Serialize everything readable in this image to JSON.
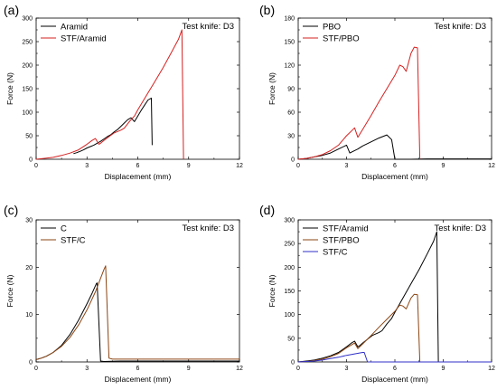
{
  "chart_data": [
    {
      "type": "line",
      "panel_label": "(a)",
      "annotation": "Test knife: D3",
      "xlabel": "Displacement (mm)",
      "ylabel": "Force (N)",
      "xlim": [
        0,
        12
      ],
      "ylim": [
        0,
        300
      ],
      "xticks": [
        0,
        3,
        6,
        9,
        12
      ],
      "yticks": [
        0,
        50,
        100,
        150,
        200,
        250,
        300
      ],
      "legend_position": "top-left",
      "series": [
        {
          "name": "Aramid",
          "color": "#000000",
          "x": [
            2.2,
            2.4,
            2.6,
            2.8,
            3.0,
            3.2,
            3.4,
            3.6,
            3.8,
            4.0,
            4.2,
            4.4,
            4.6,
            4.8,
            5.0,
            5.2,
            5.4,
            5.6,
            5.8,
            6.0,
            6.2,
            6.4,
            6.6,
            6.8,
            6.85
          ],
          "y": [
            12,
            14,
            17,
            20,
            24,
            27,
            30,
            34,
            38,
            43,
            48,
            52,
            58,
            63,
            70,
            77,
            84,
            88,
            80,
            92,
            104,
            115,
            126,
            130,
            30
          ]
        },
        {
          "name": "STF/Aramid",
          "color": "#d62020",
          "x": [
            0,
            0.5,
            1.0,
            1.5,
            2.0,
            2.5,
            3.0,
            3.3,
            3.5,
            3.7,
            3.8,
            4.0,
            4.3,
            4.6,
            5.0,
            5.2,
            5.5,
            5.8,
            6.0,
            6.5,
            7.0,
            7.5,
            8.0,
            8.4,
            8.6,
            8.7
          ],
          "y": [
            0,
            2,
            4,
            8,
            13,
            20,
            32,
            40,
            44,
            32,
            34,
            40,
            48,
            56,
            62,
            66,
            80,
            92,
            105,
            135,
            165,
            195,
            228,
            255,
            275,
            0
          ]
        }
      ]
    },
    {
      "type": "line",
      "panel_label": "(b)",
      "annotation": "Test knife: D3",
      "xlabel": "Displacement (mm)",
      "ylabel": "Force (N)",
      "xlim": [
        0,
        12
      ],
      "ylim": [
        0,
        180
      ],
      "xticks": [
        0,
        3,
        6,
        9,
        12
      ],
      "yticks": [
        0,
        30,
        60,
        90,
        120,
        150,
        180
      ],
      "legend_position": "top-left",
      "series": [
        {
          "name": "PBO",
          "color": "#000000",
          "x": [
            0,
            0.5,
            1.0,
            1.5,
            2.0,
            2.5,
            3.0,
            3.2,
            3.4,
            3.7,
            4.0,
            4.5,
            5.0,
            5.5,
            5.8,
            6.0,
            6.5,
            7.0,
            8.0,
            9.0,
            10.0,
            11.0,
            12.0
          ],
          "y": [
            0,
            1,
            3,
            5,
            8,
            13,
            18,
            8,
            10,
            13,
            17,
            22,
            27,
            31,
            25,
            0,
            0,
            0,
            0.5,
            0.5,
            0.5,
            0.5,
            0.5
          ]
        },
        {
          "name": "STF/PBO",
          "color": "#d62020",
          "x": [
            0,
            0.5,
            1.0,
            1.5,
            2.0,
            2.5,
            3.0,
            3.3,
            3.5,
            3.7,
            4.0,
            4.5,
            5.0,
            5.5,
            6.0,
            6.3,
            6.5,
            6.7,
            7.0,
            7.2,
            7.4,
            7.55
          ],
          "y": [
            0,
            1,
            3,
            6,
            11,
            18,
            30,
            36,
            40,
            28,
            38,
            55,
            73,
            90,
            107,
            120,
            118,
            112,
            135,
            143,
            142,
            0
          ]
        }
      ]
    },
    {
      "type": "line",
      "panel_label": "(c)",
      "annotation": "Test knife: D3",
      "xlabel": "Displacement (mm)",
      "ylabel": "Force (N)",
      "xlim": [
        0,
        12
      ],
      "ylim": [
        0,
        30
      ],
      "xticks": [
        0,
        3,
        6,
        9,
        12
      ],
      "yticks": [
        0,
        10,
        20,
        30
      ],
      "legend_position": "top-left",
      "series": [
        {
          "name": "C",
          "color": "#000000",
          "x": [
            0,
            0.3,
            0.6,
            1.0,
            1.5,
            2.0,
            2.5,
            3.0,
            3.3,
            3.55,
            3.6,
            3.8,
            4.0,
            5.0,
            6.0,
            7.0,
            8.0,
            9.0,
            10.0,
            11.0,
            12.0
          ],
          "y": [
            0.5,
            0.8,
            1.2,
            2.0,
            3.5,
            5.8,
            8.8,
            12.3,
            14.5,
            16.5,
            16.7,
            0.2,
            0.1,
            0.2,
            0.2,
            0.2,
            0.2,
            0.2,
            0.2,
            0.2,
            0.2
          ]
        },
        {
          "name": "STF/C",
          "color": "#8b4513",
          "x": [
            0,
            0.3,
            0.6,
            1.0,
            1.5,
            2.0,
            2.5,
            3.0,
            3.5,
            4.0,
            4.1,
            4.3,
            4.5,
            5.0,
            6.0,
            7.0,
            8.0,
            9.0,
            10.0,
            11.0,
            12.0
          ],
          "y": [
            0.5,
            0.8,
            1.2,
            2.0,
            3.3,
            5.2,
            7.8,
            11.0,
            14.8,
            19.5,
            20.3,
            0.8,
            0.6,
            0.6,
            0.6,
            0.6,
            0.6,
            0.6,
            0.6,
            0.6,
            0.6
          ]
        }
      ]
    },
    {
      "type": "line",
      "panel_label": "(d)",
      "annotation": "Test knife: D3",
      "xlabel": "Displacement (mm)",
      "ylabel": "Force (N)",
      "xlim": [
        0,
        12
      ],
      "ylim": [
        0,
        300
      ],
      "xticks": [
        0,
        3,
        6,
        9,
        12
      ],
      "yticks": [
        0,
        50,
        100,
        150,
        200,
        250,
        300
      ],
      "legend_position": "top-left",
      "series": [
        {
          "name": "STF/Aramid",
          "color": "#000000",
          "x": [
            0,
            0.5,
            1.0,
            1.5,
            2.0,
            2.5,
            3.0,
            3.3,
            3.5,
            3.7,
            3.8,
            4.0,
            4.3,
            4.6,
            5.0,
            5.2,
            5.5,
            5.8,
            6.0,
            6.5,
            7.0,
            7.5,
            8.0,
            8.4,
            8.6,
            8.7,
            9.0,
            10.0,
            11.0,
            12.0
          ],
          "y": [
            0,
            2,
            4,
            8,
            13,
            20,
            32,
            40,
            44,
            32,
            34,
            40,
            48,
            56,
            62,
            66,
            80,
            92,
            105,
            135,
            165,
            195,
            228,
            255,
            275,
            0,
            0,
            0,
            0,
            0
          ]
        },
        {
          "name": "STF/PBO",
          "color": "#8b4513",
          "x": [
            0,
            0.5,
            1.0,
            1.5,
            2.0,
            2.5,
            3.0,
            3.3,
            3.5,
            3.7,
            4.0,
            4.5,
            5.0,
            5.5,
            6.0,
            6.3,
            6.5,
            6.7,
            7.0,
            7.2,
            7.4,
            7.55
          ],
          "y": [
            0,
            1,
            3,
            6,
            11,
            18,
            30,
            36,
            40,
            28,
            38,
            55,
            73,
            90,
            107,
            120,
            118,
            112,
            135,
            143,
            142,
            0
          ]
        },
        {
          "name": "STF/C",
          "color": "#2f2fc8",
          "x": [
            0,
            0.5,
            1.0,
            1.5,
            2.0,
            2.5,
            3.0,
            3.5,
            4.0,
            4.1,
            4.3,
            5.0,
            6.0,
            7.0,
            8.0,
            9.0,
            10.0,
            11.0,
            12.0
          ],
          "y": [
            0,
            1,
            2,
            4,
            7,
            10,
            14,
            17,
            20,
            20,
            0,
            0,
            0,
            0,
            0,
            0,
            0,
            0,
            0
          ]
        }
      ]
    }
  ]
}
